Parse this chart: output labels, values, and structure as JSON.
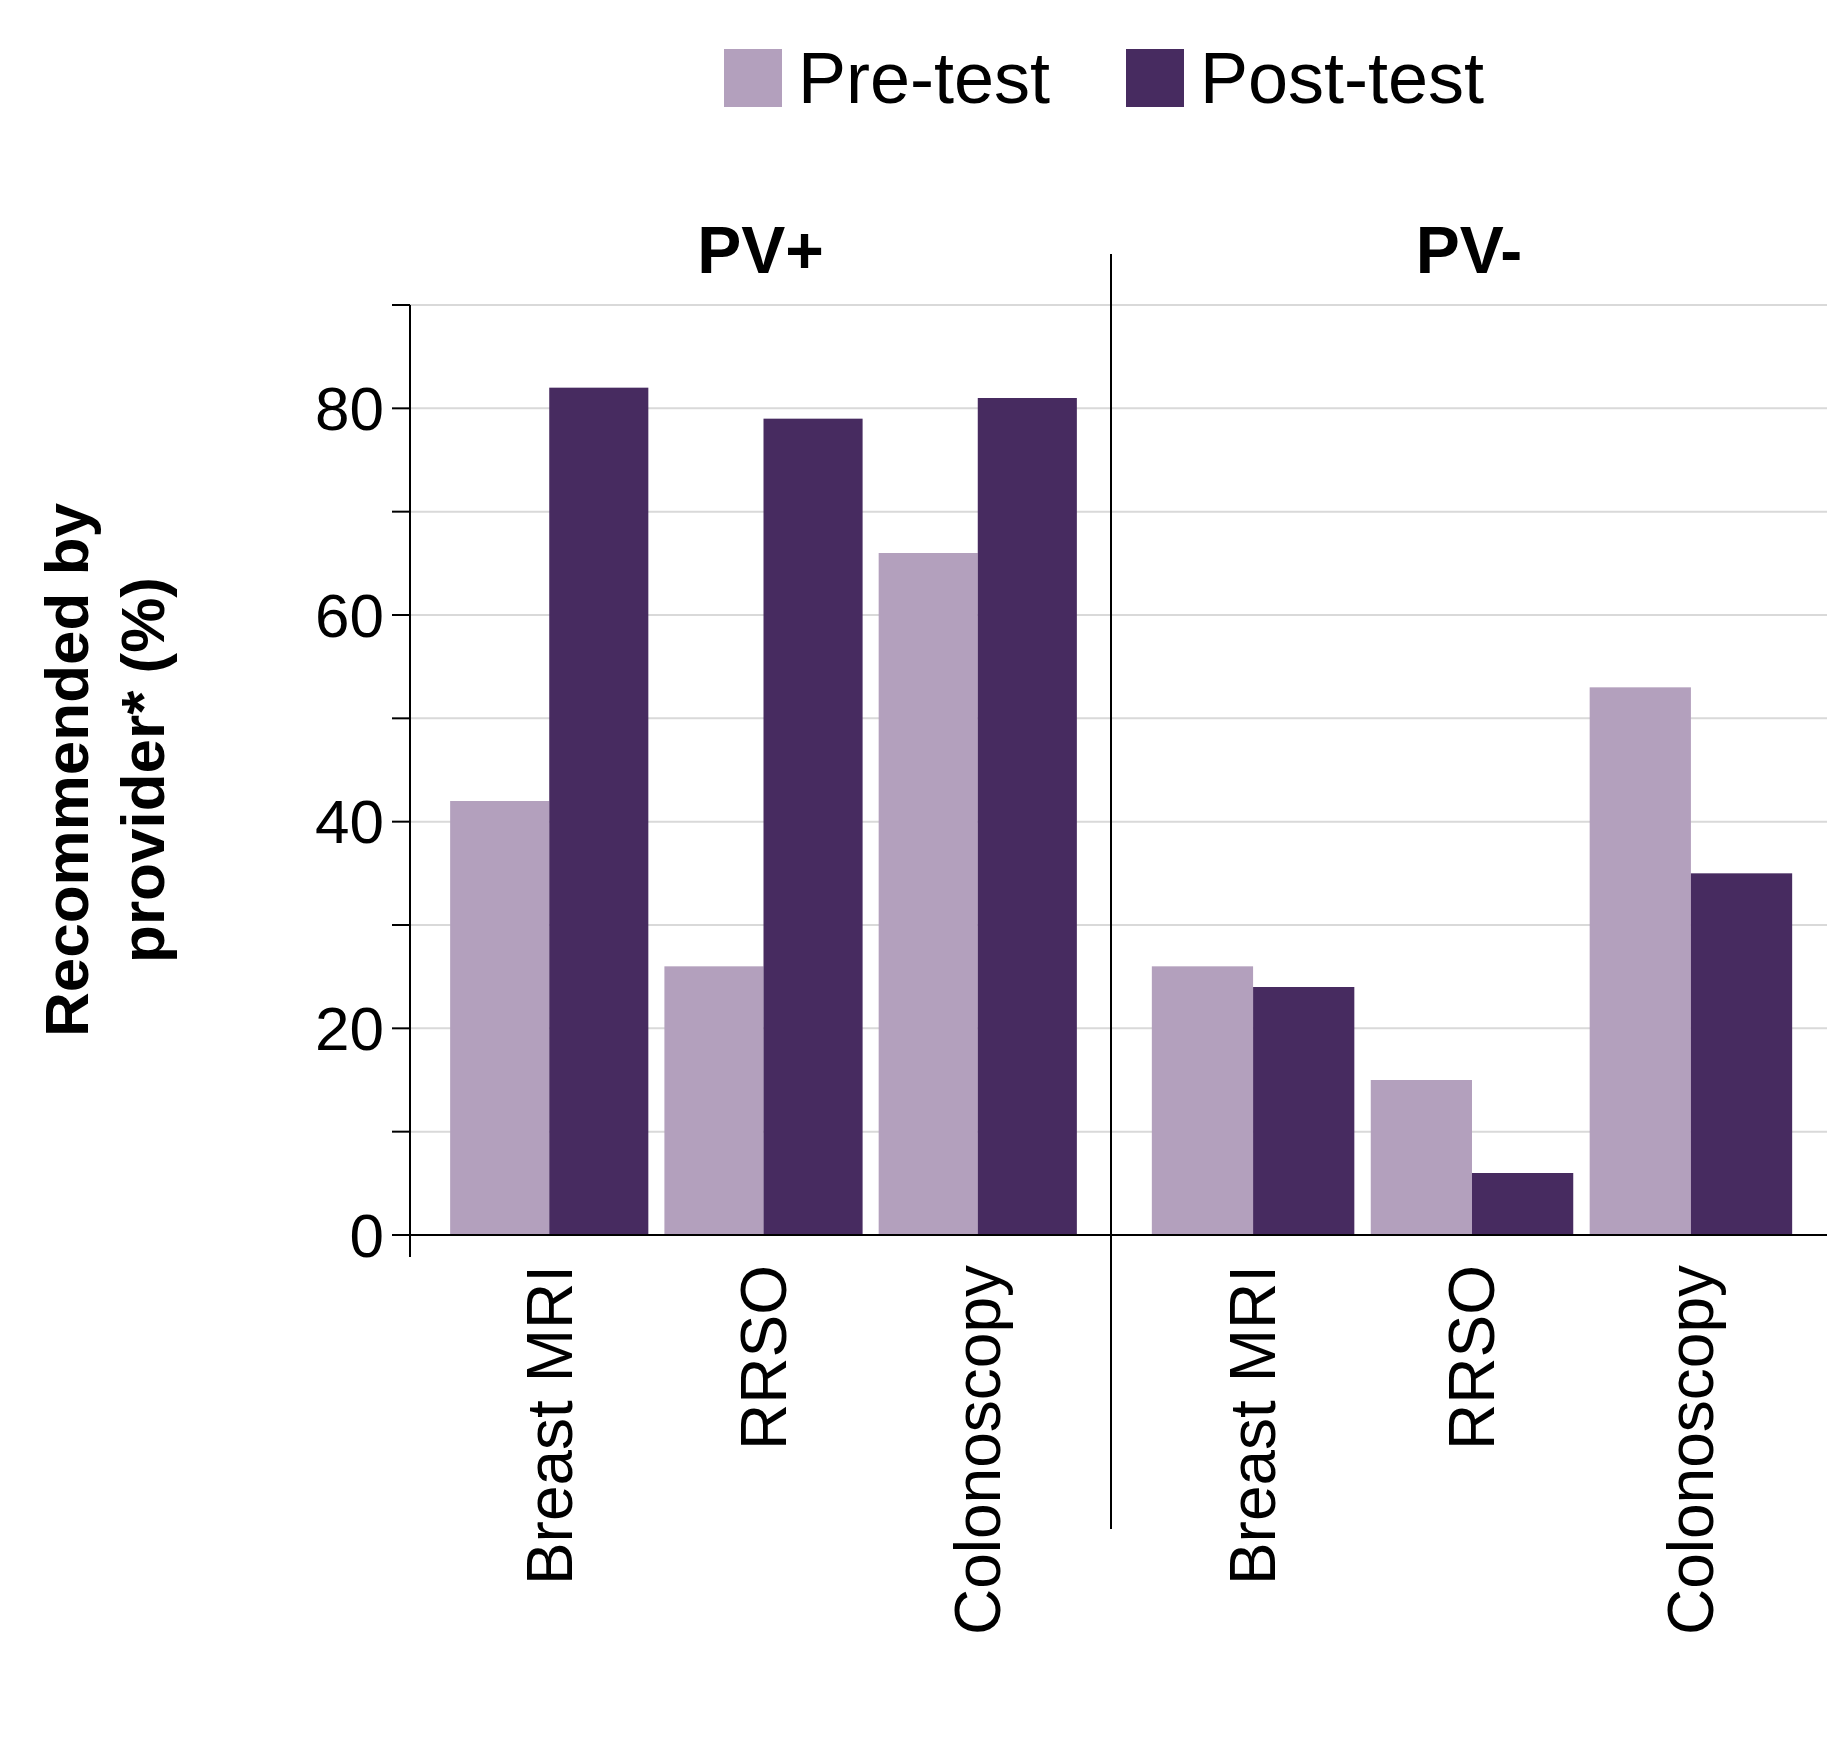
{
  "chart_data": [
    {
      "type": "bar",
      "title": "PV+",
      "ylabel": "Recommended by provider* (%)",
      "categories": [
        "Breast MRI",
        "RRSO",
        "Colonoscopy"
      ],
      "series": [
        {
          "name": "Pre-test",
          "color": "#b3a0bd",
          "values": [
            42,
            26,
            66
          ]
        },
        {
          "name": "Post-test",
          "color": "#472b60",
          "values": [
            82,
            79,
            81
          ]
        }
      ],
      "ylim": [
        0,
        90
      ],
      "yticks": [
        0,
        {
          "value": 10,
          "label": null
        },
        20,
        {
          "value": 30,
          "label": null
        },
        40,
        {
          "value": 50,
          "label": null
        },
        60,
        {
          "value": 70,
          "label": null
        },
        80,
        {
          "value": 90,
          "label": null
        }
      ],
      "grid": "y",
      "legend": "top"
    },
    {
      "type": "bar",
      "title": "PV-",
      "categories": [
        "Breast MRI",
        "RRSO",
        "Colonoscopy"
      ],
      "series": [
        {
          "color": "#b3a0bd",
          "values": [
            26,
            15,
            53
          ]
        },
        {
          "color": "#472b60",
          "values": [
            24,
            6,
            35
          ]
        }
      ],
      "ylim": [
        0,
        90
      ],
      "yticks": [
        0,
        {
          "value": 10,
          "label": null
        },
        20,
        {
          "value": 30,
          "label": null
        },
        40,
        {
          "value": 50,
          "label": null
        },
        60,
        {
          "value": 70,
          "label": null
        },
        80,
        {
          "value": 90,
          "label": null
        }
      ],
      "grid": "y",
      "tick_labels": "x"
    }
  ]
}
